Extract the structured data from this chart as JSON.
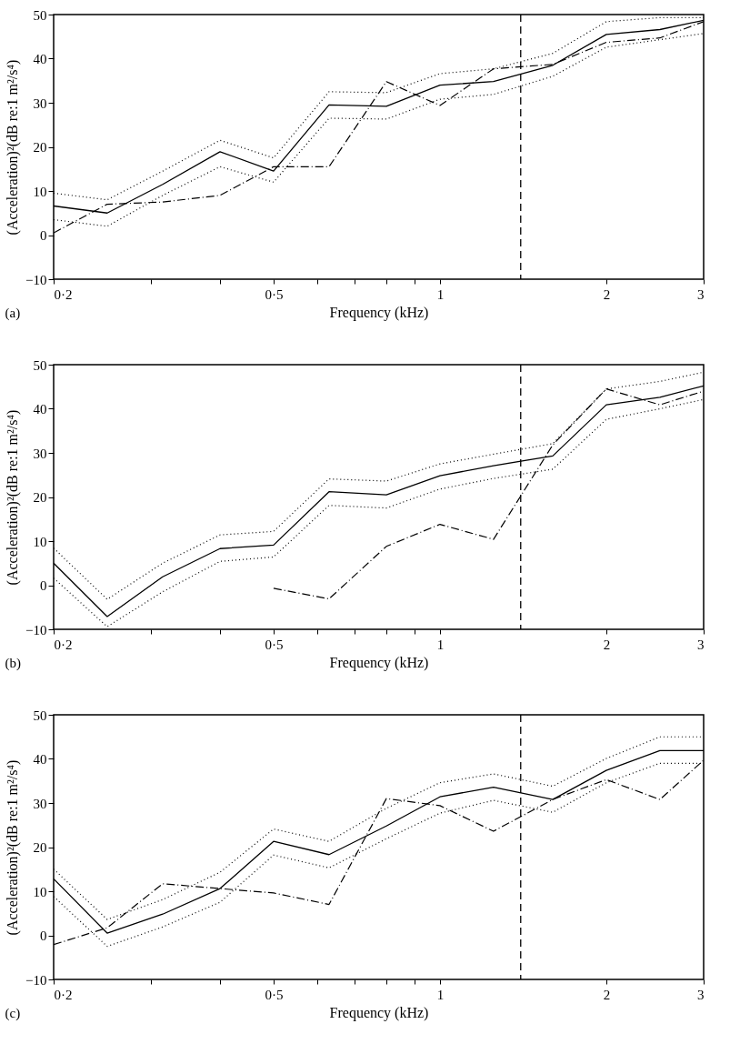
{
  "chart_data": [
    {
      "type": "line",
      "xlabel": "Frequency (kHz)",
      "ylabel": "(Acceleration)²(dB re:1 m²/s⁴)",
      "annotations": [
        "(a)"
      ],
      "log": "x",
      "grid": false,
      "x": [
        0.2,
        0.25,
        0.315,
        0.4,
        0.5,
        0.63,
        0.8,
        1,
        1.25,
        1.6,
        2,
        2.5,
        3
      ],
      "xlim": [
        0.2,
        3
      ],
      "xticks": [
        {
          "value": 0.2,
          "label": "0·2"
        },
        {
          "value": 0.3,
          "label": null
        },
        {
          "value": 0.4,
          "label": null
        },
        {
          "value": 0.5,
          "label": "0·5"
        },
        {
          "value": 0.6,
          "label": null
        },
        {
          "value": 0.7,
          "label": null
        },
        {
          "value": 0.8,
          "label": null
        },
        {
          "value": 0.9,
          "label": null
        },
        1,
        2,
        3
      ],
      "ylim": [
        -10,
        50
      ],
      "yticks": [
        -10,
        0,
        10,
        20,
        30,
        40,
        50
      ],
      "ref_lines": [
        {
          "axis": "x",
          "value": 1.4,
          "line_style": "dashed",
          "color": "#000000"
        }
      ],
      "series": [
        {
          "color": "#000000",
          "line_style": "solid",
          "values": [
            6.6,
            5.0,
            11.5,
            18.9,
            14.5,
            29.5,
            29.2,
            34,
            34.8,
            38.5,
            45.5,
            46.6,
            48.7
          ]
        },
        {
          "color": "#000000",
          "line_style": "dotted",
          "values": [
            9.5,
            8,
            14.5,
            21.5,
            17.5,
            32.5,
            32.3,
            36.6,
            37.7,
            41.2,
            48.4,
            49.3,
            49.3
          ]
        },
        {
          "color": "#000000",
          "line_style": "dotted",
          "values": [
            3.5,
            2,
            9,
            15.5,
            12,
            26.5,
            26.3,
            30.8,
            31.9,
            36,
            42.6,
            44.3,
            45.7
          ]
        },
        {
          "color": "#000000",
          "line_style": "dashdot",
          "values": [
            0.5,
            7,
            7.5,
            9,
            15.5,
            15.5,
            34.8,
            29.4,
            37.7,
            38.7,
            43.7,
            44.7,
            48.4
          ]
        }
      ]
    },
    {
      "type": "line",
      "xlabel": "Frequency (kHz)",
      "ylabel": "(Acceleration)²(dB re:1 m²/s⁴)",
      "annotations": [
        "(b)"
      ],
      "log": "x",
      "grid": false,
      "x": [
        0.2,
        0.25,
        0.315,
        0.4,
        0.5,
        0.63,
        0.8,
        1,
        1.25,
        1.6,
        2,
        2.5,
        3
      ],
      "xlim": [
        0.2,
        3
      ],
      "xticks": [
        {
          "value": 0.2,
          "label": "0·2"
        },
        {
          "value": 0.3,
          "label": null
        },
        {
          "value": 0.4,
          "label": null
        },
        {
          "value": 0.5,
          "label": "0·5"
        },
        {
          "value": 0.6,
          "label": null
        },
        {
          "value": 0.7,
          "label": null
        },
        {
          "value": 0.8,
          "label": null
        },
        {
          "value": 0.9,
          "label": null
        },
        1,
        2,
        3
      ],
      "ylim": [
        -10,
        50
      ],
      "yticks": [
        -10,
        0,
        10,
        20,
        30,
        40,
        50
      ],
      "ref_lines": [
        {
          "axis": "x",
          "value": 1.4,
          "line_style": "dashed",
          "color": "#000000"
        }
      ],
      "series": [
        {
          "color": "#000000",
          "line_style": "solid",
          "values": [
            5.0,
            -7.1,
            1.9,
            8.3,
            9.1,
            21.2,
            20.5,
            24.8,
            27.1,
            29.3,
            40.9,
            42.6,
            45.2
          ]
        },
        {
          "color": "#000000",
          "line_style": "dotted",
          "values": [
            8.4,
            -3.2,
            5,
            11.4,
            12.2,
            24.1,
            23.6,
            27.5,
            29.7,
            32.1,
            44.5,
            46.2,
            48.3
          ]
        },
        {
          "color": "#000000",
          "line_style": "dotted",
          "values": [
            1.6,
            -9.4,
            -1.5,
            5.4,
            6.4,
            18.1,
            17.5,
            21.8,
            24.2,
            26.3,
            37.6,
            40,
            42.1
          ]
        },
        {
          "color": "#000000",
          "line_style": "dashdot",
          "values": [
            null,
            null,
            null,
            null,
            -0.7,
            -3.1,
            8.8,
            13.8,
            10.4,
            31.8,
            44.5,
            40.9,
            44
          ]
        }
      ]
    },
    {
      "type": "line",
      "xlabel": "Frequency (kHz)",
      "ylabel": "(Acceleration)²(dB re:1 m²/s⁴)",
      "annotations": [
        "(c)"
      ],
      "log": "x",
      "grid": false,
      "x": [
        0.2,
        0.25,
        0.315,
        0.4,
        0.5,
        0.63,
        0.8,
        1,
        1.25,
        1.6,
        2,
        2.5,
        3
      ],
      "xlim": [
        0.2,
        3
      ],
      "xticks": [
        {
          "value": 0.2,
          "label": "0·2"
        },
        {
          "value": 0.3,
          "label": null
        },
        {
          "value": 0.4,
          "label": null
        },
        {
          "value": 0.5,
          "label": "0·5"
        },
        {
          "value": 0.6,
          "label": null
        },
        {
          "value": 0.7,
          "label": null
        },
        {
          "value": 0.8,
          "label": null
        },
        {
          "value": 0.9,
          "label": null
        },
        1,
        2,
        3
      ],
      "ylim": [
        -10,
        50
      ],
      "yticks": [
        -10,
        0,
        10,
        20,
        30,
        40,
        50
      ],
      "ref_lines": [
        {
          "axis": "x",
          "value": 1.4,
          "line_style": "dashed",
          "color": "#000000"
        }
      ],
      "series": [
        {
          "color": "#000000",
          "line_style": "solid",
          "values": [
            12.8,
            0.5,
            4.8,
            10.6,
            21.3,
            18.3,
            24.8,
            31.4,
            33.6,
            30.8,
            37.4,
            41.9,
            41.9
          ]
        },
        {
          "color": "#000000",
          "line_style": "dotted",
          "values": [
            15,
            3.6,
            8.1,
            14.3,
            24.1,
            21.3,
            28.8,
            34.6,
            36.6,
            33.8,
            40.1,
            45,
            45
          ]
        },
        {
          "color": "#000000",
          "line_style": "dotted",
          "values": [
            8.8,
            -2.5,
            1.9,
            7.5,
            18.2,
            15.3,
            21.9,
            27.7,
            30.6,
            27.9,
            34.6,
            39,
            39
          ]
        },
        {
          "color": "#000000",
          "line_style": "dashdot",
          "values": [
            -2.1,
            1.7,
            11.7,
            10.6,
            9.6,
            7,
            31,
            29.4,
            23.6,
            30.8,
            35.3,
            30.8,
            39.7
          ]
        }
      ]
    }
  ]
}
